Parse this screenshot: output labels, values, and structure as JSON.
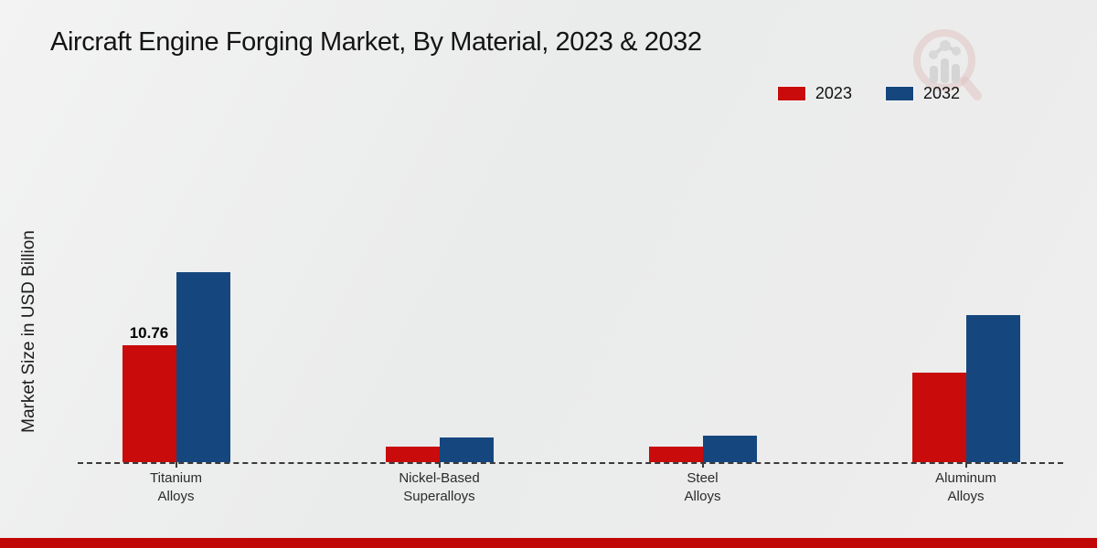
{
  "chart_data": {
    "type": "bar",
    "title": "Aircraft Engine Forging Market, By Material, 2023 & 2032",
    "xlabel": "",
    "ylabel": "Market Size in USD Billion",
    "categories": [
      "Titanium Alloys",
      "Nickel-Based Superalloys",
      "Steel Alloys",
      "Aluminum Alloys"
    ],
    "category_label_lines": [
      [
        "Titanium",
        "Alloys"
      ],
      [
        "Nickel-Based",
        "Superalloys"
      ],
      [
        "Steel",
        "Alloys"
      ],
      [
        "Aluminum",
        "Alloys"
      ]
    ],
    "series": [
      {
        "name": "2023",
        "color": "#c90b0b",
        "values": [
          10.76,
          1.4,
          1.4,
          8.2
        ]
      },
      {
        "name": "2032",
        "color": "#15477e",
        "values": [
          17.5,
          2.3,
          2.4,
          13.5
        ]
      }
    ],
    "data_labels": [
      {
        "series": "2023",
        "category": "Titanium Alloys",
        "text": "10.76"
      }
    ],
    "legend_position": "top-right",
    "grid": false,
    "baseline_style": "dashed",
    "ylim": [
      0,
      20
    ]
  },
  "colors": {
    "series_2023": "#c90b0b",
    "series_2032": "#15477e",
    "footer_bar": "#c10606",
    "axis_dash": "#3a3a3a"
  },
  "icons": {
    "watermark": "magnifier-bar-chart-logo"
  }
}
